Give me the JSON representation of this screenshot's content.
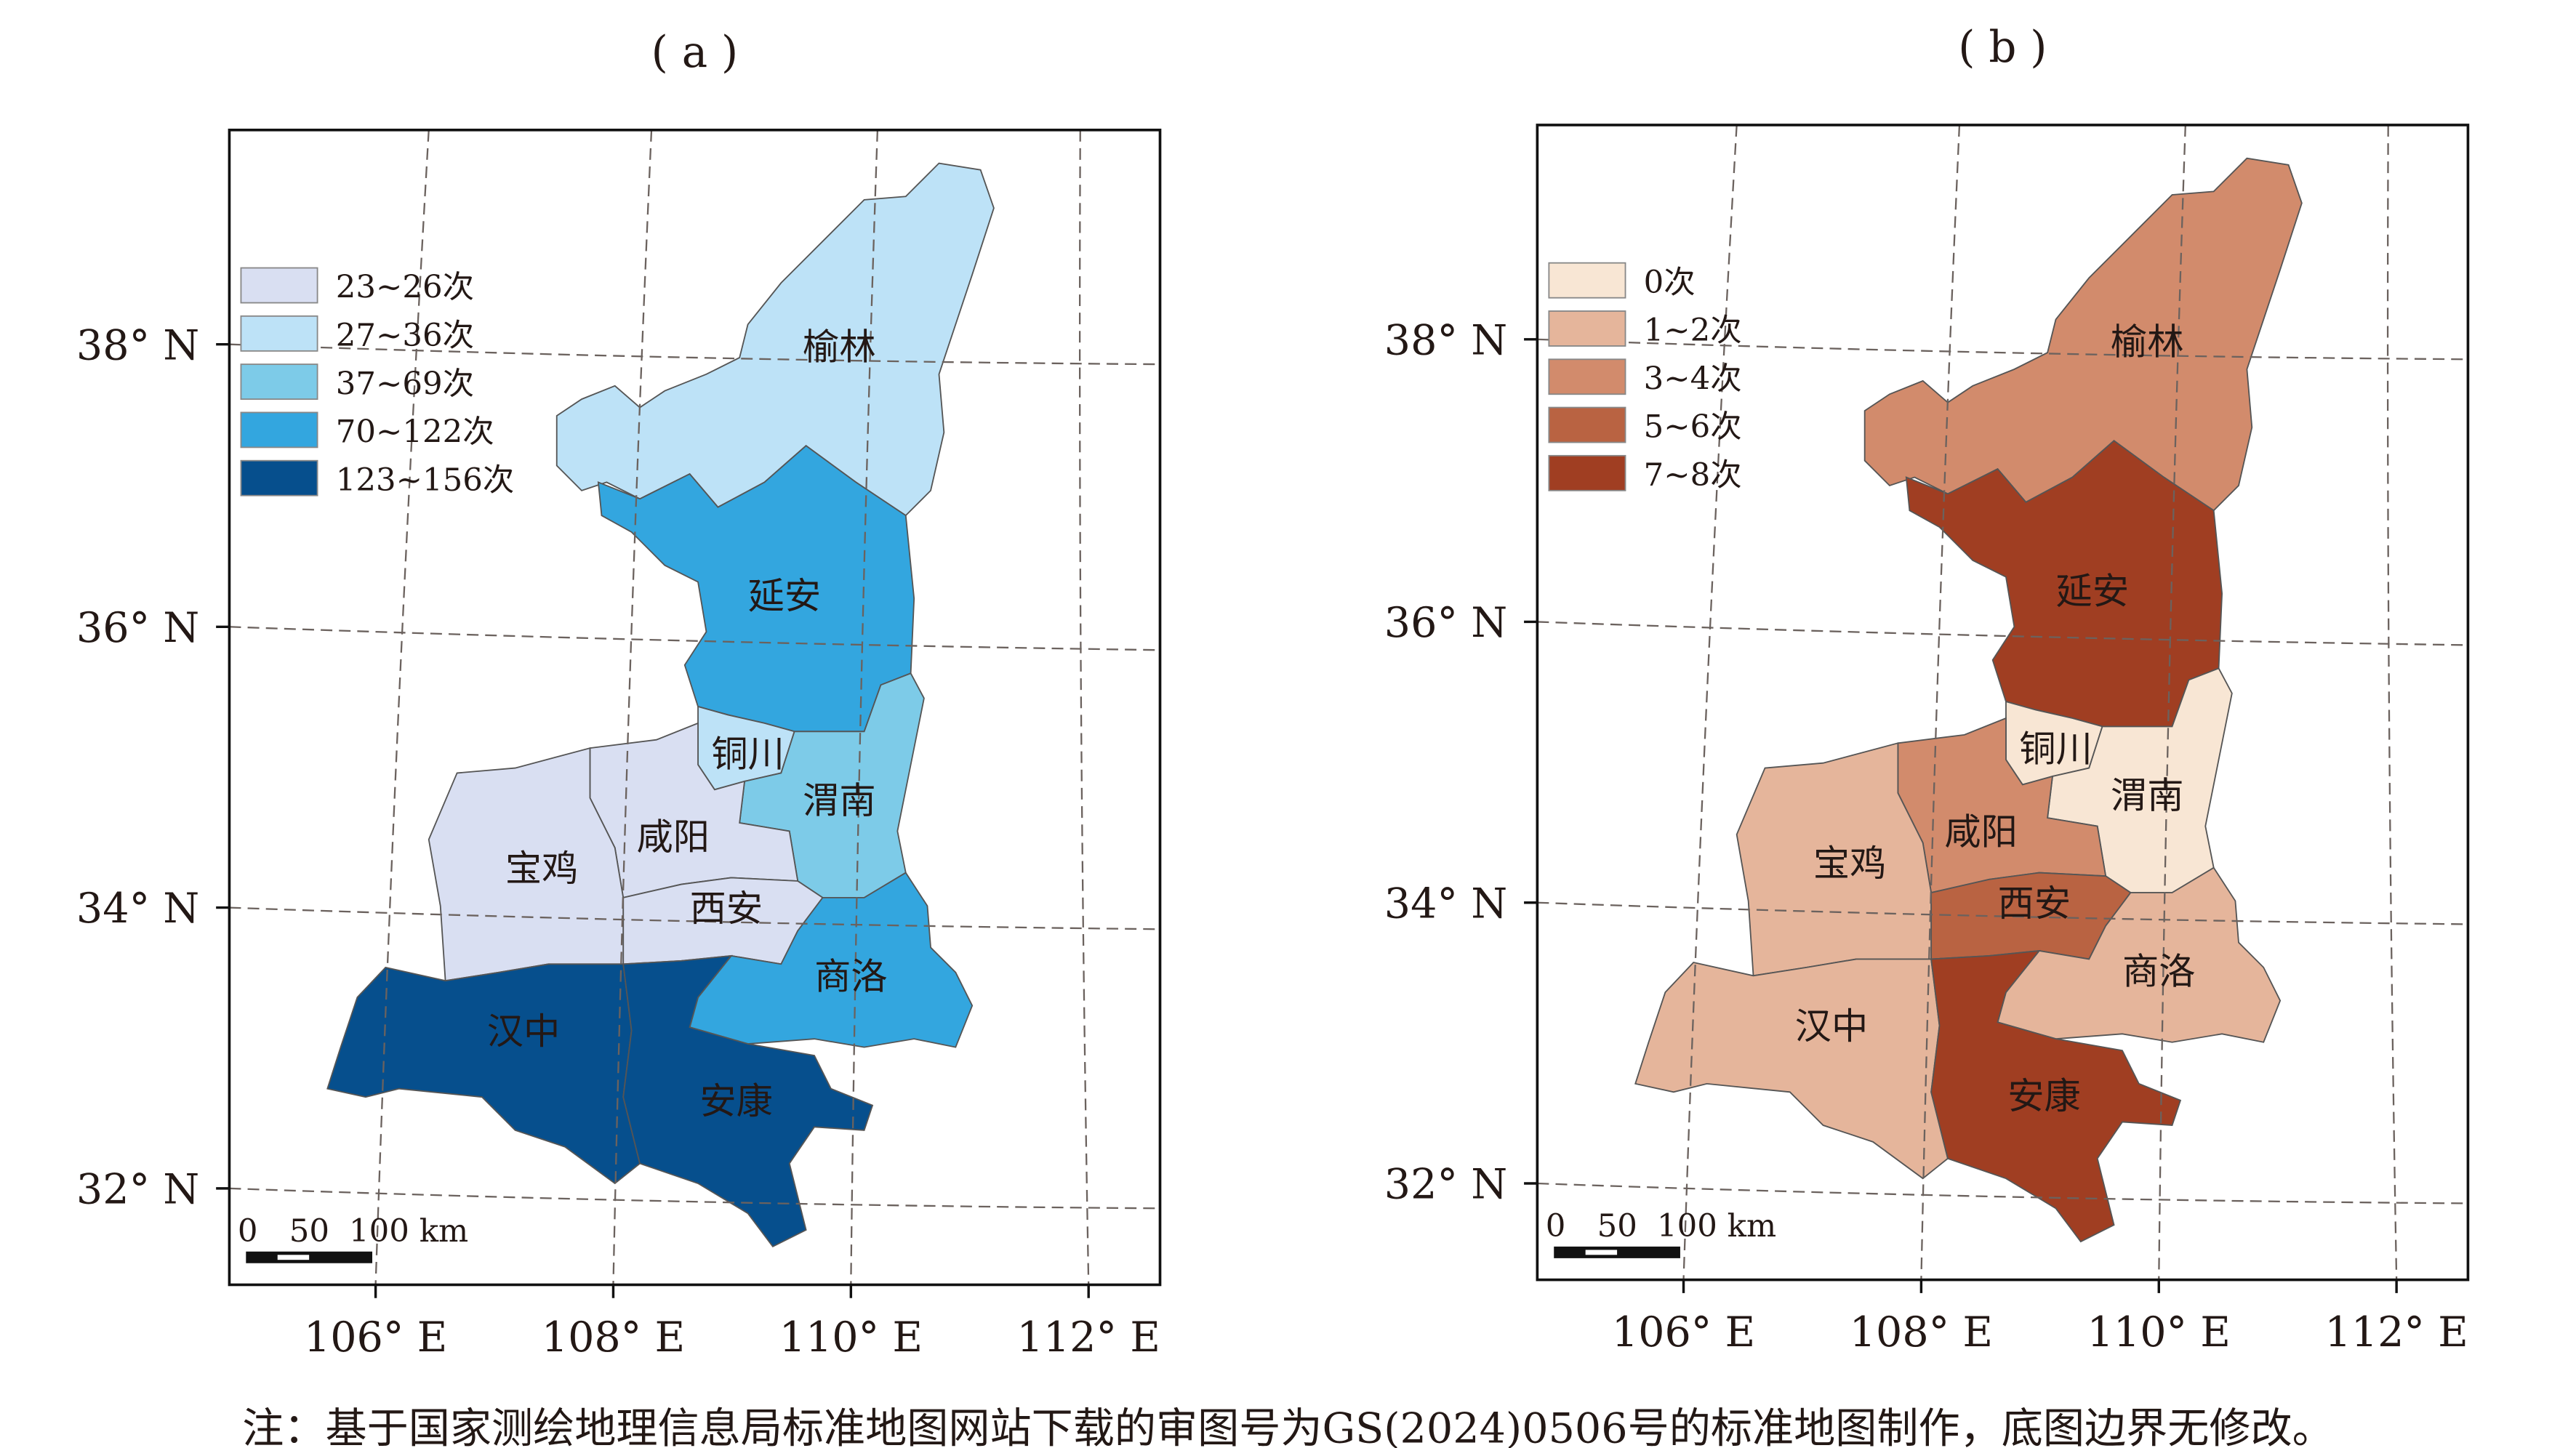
{
  "caption": "注：基于国家测绘地理信息局标准地图网站下载的审图号为GS(2024)0506号的标准地图制作，底图边界无修改。",
  "axes": {
    "lat_labels": [
      "38° N",
      "36° N",
      "34° N",
      "32° N"
    ],
    "lon_labels": [
      "106° E",
      "108° E",
      "110° E",
      "112° E"
    ]
  },
  "scalebar": {
    "labels": [
      "0",
      "50",
      "100 km"
    ]
  },
  "regions": [
    "榆林",
    "延安",
    "铜川",
    "渭南",
    "咸阳",
    "西安",
    "宝鸡",
    "商洛",
    "汉中",
    "安康"
  ],
  "panels": [
    {
      "title": "( a )",
      "legend": [
        {
          "label": "23~26次",
          "color": "#d9dff2"
        },
        {
          "label": "27~36次",
          "color": "#bde2f7"
        },
        {
          "label": "37~69次",
          "color": "#7dcbe8"
        },
        {
          "label": "70~122次",
          "color": "#33a6df"
        },
        {
          "label": "123~156次",
          "color": "#064f8d"
        }
      ],
      "region_class": [
        1,
        3,
        1,
        2,
        0,
        0,
        0,
        3,
        4,
        4
      ]
    },
    {
      "title": "( b )",
      "legend": [
        {
          "label": "0次",
          "color": "#f8e6d4"
        },
        {
          "label": "1~2次",
          "color": "#e5b59b"
        },
        {
          "label": "3~4次",
          "color": "#d28b6c"
        },
        {
          "label": "5~6次",
          "color": "#b96342"
        },
        {
          "label": "7~8次",
          "color": "#a03e22"
        }
      ],
      "region_class": [
        2,
        4,
        0,
        0,
        2,
        3,
        1,
        1,
        1,
        4
      ]
    }
  ]
}
